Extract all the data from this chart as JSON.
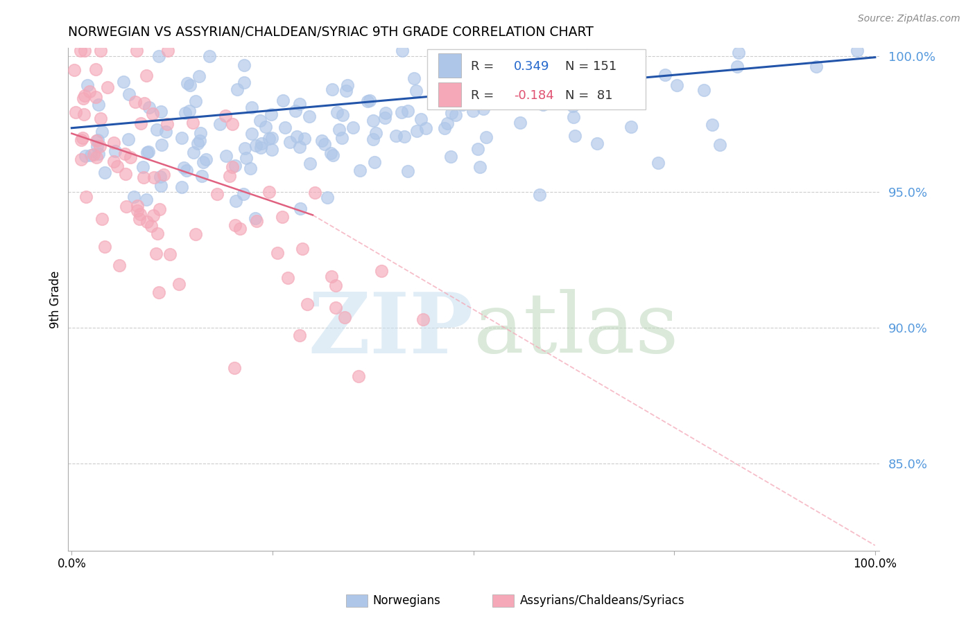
{
  "title": "NORWEGIAN VS ASSYRIAN/CHALDEAN/SYRIAC 9TH GRADE CORRELATION CHART",
  "source": "Source: ZipAtlas.com",
  "ylabel": "9th Grade",
  "ylim": [
    0.818,
    1.003
  ],
  "xlim": [
    -0.005,
    1.005
  ],
  "yticks": [
    0.85,
    0.9,
    0.95,
    1.0
  ],
  "ytick_labels": [
    "85.0%",
    "90.0%",
    "95.0%",
    "100.0%"
  ],
  "blue_R": 0.349,
  "blue_N": 151,
  "pink_R": -0.184,
  "pink_N": 81,
  "blue_color": "#aec6e8",
  "pink_color": "#f4a8b8",
  "blue_line_color": "#2255aa",
  "pink_line_color": "#e06080",
  "pink_dash_color": "#f4a8b8",
  "blue_label": "Norwegians",
  "pink_label": "Assyrians/Chaldeans/Syriacs",
  "watermark_zip": "ZIP",
  "watermark_atlas": "atlas",
  "blue_seed": 42,
  "pink_seed": 123
}
